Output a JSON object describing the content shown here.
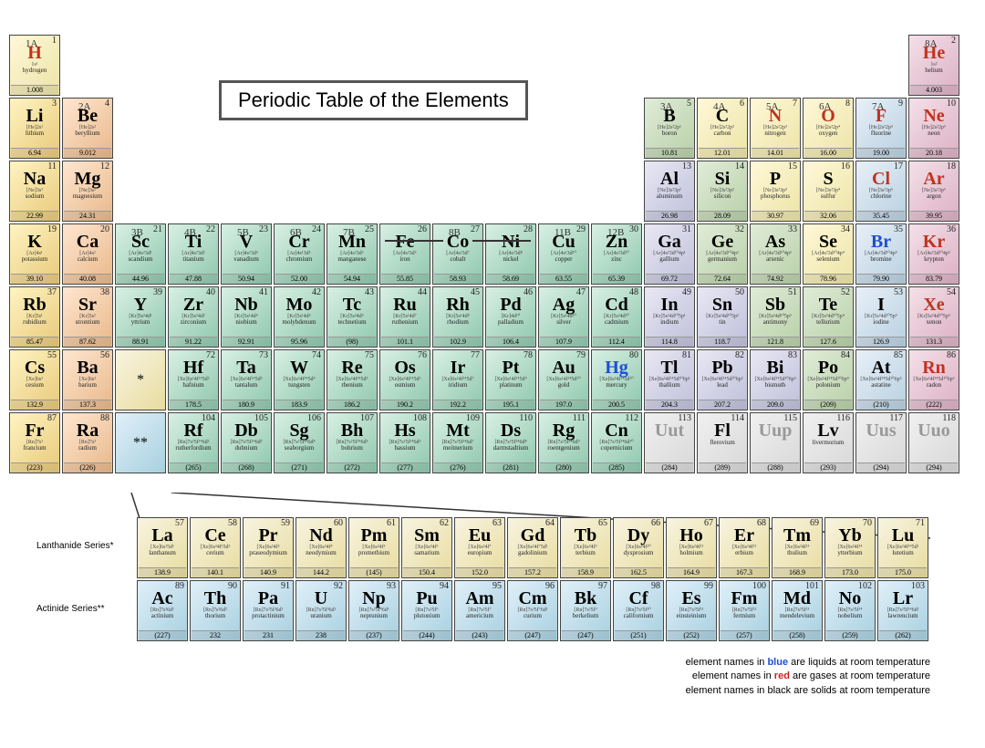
{
  "title": "Periodic Table of the Elements",
  "group_labels": [
    "1A",
    "2A",
    "3B",
    "4B",
    "5B",
    "6B",
    "7B",
    "8B",
    "11B",
    "12B",
    "3A",
    "4A",
    "5A",
    "6A",
    "7A",
    "8A"
  ],
  "legend": {
    "l1a": "element names in ",
    "l1b": "blue",
    "l1c": " are liquids at room temperature",
    "l2a": "element names in ",
    "l2b": "red",
    "l2c": " are gases at room temperature",
    "l3": "element names in black are solids at room temperature"
  },
  "series": {
    "lanth": "Lanthanide Series*",
    "act": "Actinide Series**"
  },
  "colors": {
    "alkali": "linear-gradient(135deg,#fff4c2,#e8c97a)",
    "alkaline": "linear-gradient(135deg,#ffe6d0,#e8b88a)",
    "transition": "linear-gradient(135deg,#d8f0e4,#8fc7ad)",
    "post": "linear-gradient(135deg,#e8e8f4,#bfbfda)",
    "metalloid": "linear-gradient(135deg,#e0ecd8,#b8d0a8)",
    "nonmetal": "linear-gradient(135deg,#fff8d8,#ece4a6)",
    "halogen": "linear-gradient(135deg,#e8f0f8,#b8d0e0)",
    "noble": "linear-gradient(135deg,#f4e0e8,#dcb0c4)",
    "lanth": "linear-gradient(135deg,#f8f4e0,#e8dca0)",
    "act": "linear-gradient(135deg,#e0f0f8,#a8d0e0)",
    "unknown": "linear-gradient(135deg,#f0f0f0,#d8d8d8)",
    "border": "#555"
  },
  "elements": [
    {
      "z": 1,
      "s": "H",
      "n": "hydrogen",
      "m": "1.008",
      "e": "1s¹",
      "r": 1,
      "c": 1,
      "cat": "nonmetal",
      "st": "gas"
    },
    {
      "z": 2,
      "s": "He",
      "n": "helium",
      "m": "4.003",
      "e": "1s²",
      "r": 1,
      "c": 18,
      "cat": "noble",
      "st": "gas"
    },
    {
      "z": 3,
      "s": "Li",
      "n": "lithium",
      "m": "6.94",
      "e": "[He]2s¹",
      "r": 2,
      "c": 1,
      "cat": "alkali"
    },
    {
      "z": 4,
      "s": "Be",
      "n": "beryllium",
      "m": "9.012",
      "e": "[He]2s²",
      "r": 2,
      "c": 2,
      "cat": "alkaline"
    },
    {
      "z": 5,
      "s": "B",
      "n": "boron",
      "m": "10.81",
      "e": "[He]2s²2p¹",
      "r": 2,
      "c": 13,
      "cat": "metalloid"
    },
    {
      "z": 6,
      "s": "C",
      "n": "carbon",
      "m": "12.01",
      "e": "[He]2s²2p²",
      "r": 2,
      "c": 14,
      "cat": "nonmetal"
    },
    {
      "z": 7,
      "s": "N",
      "n": "nitrogen",
      "m": "14.01",
      "e": "[He]2s²2p³",
      "r": 2,
      "c": 15,
      "cat": "nonmetal",
      "st": "gas"
    },
    {
      "z": 8,
      "s": "O",
      "n": "oxygen",
      "m": "16.00",
      "e": "[He]2s²2p⁴",
      "r": 2,
      "c": 16,
      "cat": "nonmetal",
      "st": "gas"
    },
    {
      "z": 9,
      "s": "F",
      "n": "fluorine",
      "m": "19.00",
      "e": "[He]2s²2p⁵",
      "r": 2,
      "c": 17,
      "cat": "halogen",
      "st": "gas"
    },
    {
      "z": 10,
      "s": "Ne",
      "n": "neon",
      "m": "20.18",
      "e": "[He]2s²2p⁶",
      "r": 2,
      "c": 18,
      "cat": "noble",
      "st": "gas"
    },
    {
      "z": 11,
      "s": "Na",
      "n": "sodium",
      "m": "22.99",
      "e": "[Ne]3s¹",
      "r": 3,
      "c": 1,
      "cat": "alkali"
    },
    {
      "z": 12,
      "s": "Mg",
      "n": "magnesium",
      "m": "24.31",
      "e": "[Ne]3s²",
      "r": 3,
      "c": 2,
      "cat": "alkaline"
    },
    {
      "z": 13,
      "s": "Al",
      "n": "aluminum",
      "m": "26.98",
      "e": "[Ne]3s²3p¹",
      "r": 3,
      "c": 13,
      "cat": "post"
    },
    {
      "z": 14,
      "s": "Si",
      "n": "silicon",
      "m": "28.09",
      "e": "[Ne]3s²3p²",
      "r": 3,
      "c": 14,
      "cat": "metalloid"
    },
    {
      "z": 15,
      "s": "P",
      "n": "phosphorus",
      "m": "30.97",
      "e": "[Ne]3s²3p³",
      "r": 3,
      "c": 15,
      "cat": "nonmetal"
    },
    {
      "z": 16,
      "s": "S",
      "n": "sulfur",
      "m": "32.06",
      "e": "[Ne]3s²3p⁴",
      "r": 3,
      "c": 16,
      "cat": "nonmetal"
    },
    {
      "z": 17,
      "s": "Cl",
      "n": "chlorine",
      "m": "35.45",
      "e": "[Ne]3s²3p⁵",
      "r": 3,
      "c": 17,
      "cat": "halogen",
      "st": "gas"
    },
    {
      "z": 18,
      "s": "Ar",
      "n": "argon",
      "m": "39.95",
      "e": "[Ne]3s²3p⁶",
      "r": 3,
      "c": 18,
      "cat": "noble",
      "st": "gas"
    },
    {
      "z": 19,
      "s": "K",
      "n": "potassium",
      "m": "39.10",
      "e": "[Ar]4s¹",
      "r": 4,
      "c": 1,
      "cat": "alkali"
    },
    {
      "z": 20,
      "s": "Ca",
      "n": "calcium",
      "m": "40.08",
      "e": "[Ar]4s²",
      "r": 4,
      "c": 2,
      "cat": "alkaline"
    },
    {
      "z": 21,
      "s": "Sc",
      "n": "scandium",
      "m": "44.96",
      "e": "[Ar]4s²3d¹",
      "r": 4,
      "c": 3,
      "cat": "transition"
    },
    {
      "z": 22,
      "s": "Ti",
      "n": "titanium",
      "m": "47.88",
      "e": "[Ar]4s²3d²",
      "r": 4,
      "c": 4,
      "cat": "transition"
    },
    {
      "z": 23,
      "s": "V",
      "n": "vanadium",
      "m": "50.94",
      "e": "[Ar]4s²3d³",
      "r": 4,
      "c": 5,
      "cat": "transition"
    },
    {
      "z": 24,
      "s": "Cr",
      "n": "chromium",
      "m": "52.00",
      "e": "[Ar]4s¹3d⁵",
      "r": 4,
      "c": 6,
      "cat": "transition"
    },
    {
      "z": 25,
      "s": "Mn",
      "n": "manganese",
      "m": "54.94",
      "e": "[Ar]4s²3d⁵",
      "r": 4,
      "c": 7,
      "cat": "transition"
    },
    {
      "z": 26,
      "s": "Fe",
      "n": "iron",
      "m": "55.85",
      "e": "[Ar]4s²3d⁶",
      "r": 4,
      "c": 8,
      "cat": "transition"
    },
    {
      "z": 27,
      "s": "Co",
      "n": "cobalt",
      "m": "58.93",
      "e": "[Ar]4s²3d⁷",
      "r": 4,
      "c": 9,
      "cat": "transition"
    },
    {
      "z": 28,
      "s": "Ni",
      "n": "nickel",
      "m": "58.69",
      "e": "[Ar]4s²3d⁸",
      "r": 4,
      "c": 10,
      "cat": "transition"
    },
    {
      "z": 29,
      "s": "Cu",
      "n": "copper",
      "m": "63.55",
      "e": "[Ar]4s¹3d¹⁰",
      "r": 4,
      "c": 11,
      "cat": "transition"
    },
    {
      "z": 30,
      "s": "Zn",
      "n": "zinc",
      "m": "65.39",
      "e": "[Ar]4s²3d¹⁰",
      "r": 4,
      "c": 12,
      "cat": "transition"
    },
    {
      "z": 31,
      "s": "Ga",
      "n": "gallium",
      "m": "69.72",
      "e": "[Ar]4s²3d¹⁰4p¹",
      "r": 4,
      "c": 13,
      "cat": "post"
    },
    {
      "z": 32,
      "s": "Ge",
      "n": "germanium",
      "m": "72.64",
      "e": "[Ar]4s²3d¹⁰4p²",
      "r": 4,
      "c": 14,
      "cat": "metalloid"
    },
    {
      "z": 33,
      "s": "As",
      "n": "arsenic",
      "m": "74.92",
      "e": "[Ar]4s²3d¹⁰4p³",
      "r": 4,
      "c": 15,
      "cat": "metalloid"
    },
    {
      "z": 34,
      "s": "Se",
      "n": "selenium",
      "m": "78.96",
      "e": "[Ar]4s²3d¹⁰4p⁴",
      "r": 4,
      "c": 16,
      "cat": "nonmetal"
    },
    {
      "z": 35,
      "s": "Br",
      "n": "bromine",
      "m": "79.90",
      "e": "[Ar]4s²3d¹⁰4p⁵",
      "r": 4,
      "c": 17,
      "cat": "halogen",
      "st": "liquid"
    },
    {
      "z": 36,
      "s": "Kr",
      "n": "krypton",
      "m": "83.79",
      "e": "[Ar]4s²3d¹⁰4p⁶",
      "r": 4,
      "c": 18,
      "cat": "noble",
      "st": "gas"
    },
    {
      "z": 37,
      "s": "Rb",
      "n": "rubidium",
      "m": "85.47",
      "e": "[Kr]5s¹",
      "r": 5,
      "c": 1,
      "cat": "alkali"
    },
    {
      "z": 38,
      "s": "Sr",
      "n": "strontium",
      "m": "87.62",
      "e": "[Kr]5s²",
      "r": 5,
      "c": 2,
      "cat": "alkaline"
    },
    {
      "z": 39,
      "s": "Y",
      "n": "yttrium",
      "m": "88.91",
      "e": "[Kr]5s²4d¹",
      "r": 5,
      "c": 3,
      "cat": "transition"
    },
    {
      "z": 40,
      "s": "Zr",
      "n": "zirconium",
      "m": "91.22",
      "e": "[Kr]5s²4d²",
      "r": 5,
      "c": 4,
      "cat": "transition"
    },
    {
      "z": 41,
      "s": "Nb",
      "n": "niobium",
      "m": "92.91",
      "e": "[Kr]5s¹4d⁴",
      "r": 5,
      "c": 5,
      "cat": "transition"
    },
    {
      "z": 42,
      "s": "Mo",
      "n": "molybdenum",
      "m": "95.96",
      "e": "[Kr]5s¹4d⁵",
      "r": 5,
      "c": 6,
      "cat": "transition"
    },
    {
      "z": 43,
      "s": "Tc",
      "n": "technetium",
      "m": "(98)",
      "e": "[Kr]5s²4d⁵",
      "r": 5,
      "c": 7,
      "cat": "transition"
    },
    {
      "z": 44,
      "s": "Ru",
      "n": "ruthenium",
      "m": "101.1",
      "e": "[Kr]5s¹4d⁷",
      "r": 5,
      "c": 8,
      "cat": "transition"
    },
    {
      "z": 45,
      "s": "Rh",
      "n": "rhodium",
      "m": "102.9",
      "e": "[Kr]5s¹4d⁸",
      "r": 5,
      "c": 9,
      "cat": "transition"
    },
    {
      "z": 46,
      "s": "Pd",
      "n": "palladium",
      "m": "106.4",
      "e": "[Kr]4d¹⁰",
      "r": 5,
      "c": 10,
      "cat": "transition"
    },
    {
      "z": 47,
      "s": "Ag",
      "n": "silver",
      "m": "107.9",
      "e": "[Kr]5s¹4d¹⁰",
      "r": 5,
      "c": 11,
      "cat": "transition"
    },
    {
      "z": 48,
      "s": "Cd",
      "n": "cadmium",
      "m": "112.4",
      "e": "[Kr]5s²4d¹⁰",
      "r": 5,
      "c": 12,
      "cat": "transition"
    },
    {
      "z": 49,
      "s": "In",
      "n": "indium",
      "m": "114.8",
      "e": "[Kr]5s²4d¹⁰5p¹",
      "r": 5,
      "c": 13,
      "cat": "post"
    },
    {
      "z": 50,
      "s": "Sn",
      "n": "tin",
      "m": "118.7",
      "e": "[Kr]5s²4d¹⁰5p²",
      "r": 5,
      "c": 14,
      "cat": "post"
    },
    {
      "z": 51,
      "s": "Sb",
      "n": "antimony",
      "m": "121.8",
      "e": "[Kr]5s²4d¹⁰5p³",
      "r": 5,
      "c": 15,
      "cat": "metalloid"
    },
    {
      "z": 52,
      "s": "Te",
      "n": "tellurium",
      "m": "127.6",
      "e": "[Kr]5s²4d¹⁰5p⁴",
      "r": 5,
      "c": 16,
      "cat": "metalloid"
    },
    {
      "z": 53,
      "s": "I",
      "n": "iodine",
      "m": "126.9",
      "e": "[Kr]5s²4d¹⁰5p⁵",
      "r": 5,
      "c": 17,
      "cat": "halogen"
    },
    {
      "z": 54,
      "s": "Xe",
      "n": "xenon",
      "m": "131.3",
      "e": "[Kr]5s²4d¹⁰5p⁶",
      "r": 5,
      "c": 18,
      "cat": "noble",
      "st": "gas"
    },
    {
      "z": 55,
      "s": "Cs",
      "n": "cesium",
      "m": "132.9",
      "e": "[Xe]6s¹",
      "r": 6,
      "c": 1,
      "cat": "alkali"
    },
    {
      "z": 56,
      "s": "Ba",
      "n": "barium",
      "m": "137.3",
      "e": "[Xe]6s²",
      "r": 6,
      "c": 2,
      "cat": "alkaline"
    },
    {
      "z": 72,
      "s": "Hf",
      "n": "hafnium",
      "m": "178.5",
      "e": "[Xe]6s²4f¹⁴5d²",
      "r": 6,
      "c": 4,
      "cat": "transition"
    },
    {
      "z": 73,
      "s": "Ta",
      "n": "tantalum",
      "m": "180.9",
      "e": "[Xe]6s²4f¹⁴5d³",
      "r": 6,
      "c": 5,
      "cat": "transition"
    },
    {
      "z": 74,
      "s": "W",
      "n": "tungsten",
      "m": "183.9",
      "e": "[Xe]6s²4f¹⁴5d⁴",
      "r": 6,
      "c": 6,
      "cat": "transition"
    },
    {
      "z": 75,
      "s": "Re",
      "n": "rhenium",
      "m": "186.2",
      "e": "[Xe]6s²4f¹⁴5d⁵",
      "r": 6,
      "c": 7,
      "cat": "transition"
    },
    {
      "z": 76,
      "s": "Os",
      "n": "osmium",
      "m": "190.2",
      "e": "[Xe]6s²4f¹⁴5d⁶",
      "r": 6,
      "c": 8,
      "cat": "transition"
    },
    {
      "z": 77,
      "s": "Ir",
      "n": "iridium",
      "m": "192.2",
      "e": "[Xe]6s²4f¹⁴5d⁷",
      "r": 6,
      "c": 9,
      "cat": "transition"
    },
    {
      "z": 78,
      "s": "Pt",
      "n": "platinum",
      "m": "195.1",
      "e": "[Xe]6s¹4f¹⁴5d⁹",
      "r": 6,
      "c": 10,
      "cat": "transition"
    },
    {
      "z": 79,
      "s": "Au",
      "n": "gold",
      "m": "197.0",
      "e": "[Xe]6s¹4f¹⁴5d¹⁰",
      "r": 6,
      "c": 11,
      "cat": "transition"
    },
    {
      "z": 80,
      "s": "Hg",
      "n": "mercury",
      "m": "200.5",
      "e": "[Xe]6s²4f¹⁴5d¹⁰",
      "r": 6,
      "c": 12,
      "cat": "transition",
      "st": "liquid"
    },
    {
      "z": 81,
      "s": "Tl",
      "n": "thallium",
      "m": "204.3",
      "e": "[Xe]6s²4f¹⁴5d¹⁰6p¹",
      "r": 6,
      "c": 13,
      "cat": "post"
    },
    {
      "z": 82,
      "s": "Pb",
      "n": "lead",
      "m": "207.2",
      "e": "[Xe]6s²4f¹⁴5d¹⁰6p²",
      "r": 6,
      "c": 14,
      "cat": "post"
    },
    {
      "z": 83,
      "s": "Bi",
      "n": "bismuth",
      "m": "209.0",
      "e": "[Xe]6s²4f¹⁴5d¹⁰6p³",
      "r": 6,
      "c": 15,
      "cat": "post"
    },
    {
      "z": 84,
      "s": "Po",
      "n": "polonium",
      "m": "(209)",
      "e": "[Xe]6s²4f¹⁴5d¹⁰6p⁴",
      "r": 6,
      "c": 16,
      "cat": "metalloid"
    },
    {
      "z": 85,
      "s": "At",
      "n": "astatine",
      "m": "(210)",
      "e": "[Xe]6s²4f¹⁴5d¹⁰6p⁵",
      "r": 6,
      "c": 17,
      "cat": "halogen"
    },
    {
      "z": 86,
      "s": "Rn",
      "n": "radon",
      "m": "(222)",
      "e": "[Xe]6s²4f¹⁴5d¹⁰6p⁶",
      "r": 6,
      "c": 18,
      "cat": "noble",
      "st": "gas"
    },
    {
      "z": 87,
      "s": "Fr",
      "n": "francium",
      "m": "(223)",
      "e": "[Rn]7s¹",
      "r": 7,
      "c": 1,
      "cat": "alkali"
    },
    {
      "z": 88,
      "s": "Ra",
      "n": "radium",
      "m": "(226)",
      "e": "[Rn]7s²",
      "r": 7,
      "c": 2,
      "cat": "alkaline"
    },
    {
      "z": 104,
      "s": "Rf",
      "n": "rutherfordium",
      "m": "(265)",
      "e": "[Rn]7s²5f¹⁴6d²",
      "r": 7,
      "c": 4,
      "cat": "transition"
    },
    {
      "z": 105,
      "s": "Db",
      "n": "dubnium",
      "m": "(268)",
      "e": "[Rn]7s²5f¹⁴6d³",
      "r": 7,
      "c": 5,
      "cat": "transition"
    },
    {
      "z": 106,
      "s": "Sg",
      "n": "seaborgium",
      "m": "(271)",
      "e": "[Rn]7s²5f¹⁴6d⁴",
      "r": 7,
      "c": 6,
      "cat": "transition"
    },
    {
      "z": 107,
      "s": "Bh",
      "n": "bohrium",
      "m": "(272)",
      "e": "[Rn]7s²5f¹⁴6d⁵",
      "r": 7,
      "c": 7,
      "cat": "transition"
    },
    {
      "z": 108,
      "s": "Hs",
      "n": "hassium",
      "m": "(277)",
      "e": "[Rn]7s²5f¹⁴6d⁶",
      "r": 7,
      "c": 8,
      "cat": "transition"
    },
    {
      "z": 109,
      "s": "Mt",
      "n": "meitnerium",
      "m": "(276)",
      "e": "[Rn]7s²5f¹⁴6d⁷",
      "r": 7,
      "c": 9,
      "cat": "transition"
    },
    {
      "z": 110,
      "s": "Ds",
      "n": "darmstadtium",
      "m": "(281)",
      "e": "[Rn]7s²5f¹⁴6d⁸",
      "r": 7,
      "c": 10,
      "cat": "transition"
    },
    {
      "z": 111,
      "s": "Rg",
      "n": "roentgenium",
      "m": "(280)",
      "e": "[Rn]7s²5f¹⁴6d⁹",
      "r": 7,
      "c": 11,
      "cat": "transition"
    },
    {
      "z": 112,
      "s": "Cn",
      "n": "copernicium",
      "m": "(285)",
      "e": "[Rn]7s²5f¹⁴6d¹⁰",
      "r": 7,
      "c": 12,
      "cat": "transition"
    },
    {
      "z": 113,
      "s": "Uut",
      "n": "",
      "m": "(284)",
      "e": "",
      "r": 7,
      "c": 13,
      "cat": "unknown",
      "st": "synthetic"
    },
    {
      "z": 114,
      "s": "Fl",
      "n": "flerovium",
      "m": "(289)",
      "e": "",
      "r": 7,
      "c": 14,
      "cat": "unknown"
    },
    {
      "z": 115,
      "s": "Uup",
      "n": "",
      "m": "(288)",
      "e": "",
      "r": 7,
      "c": 15,
      "cat": "unknown",
      "st": "synthetic"
    },
    {
      "z": 116,
      "s": "Lv",
      "n": "livermorium",
      "m": "(293)",
      "e": "",
      "r": 7,
      "c": 16,
      "cat": "unknown"
    },
    {
      "z": 117,
      "s": "Uus",
      "n": "",
      "m": "(294)",
      "e": "",
      "r": 7,
      "c": 17,
      "cat": "unknown",
      "st": "synthetic"
    },
    {
      "z": 118,
      "s": "Uuo",
      "n": "",
      "m": "(294)",
      "e": "",
      "r": 7,
      "c": 18,
      "cat": "unknown",
      "st": "synthetic"
    }
  ],
  "lanthanides": [
    {
      "z": 57,
      "s": "La",
      "n": "lanthanum",
      "m": "138.9",
      "e": "[Xe]6s²5d¹"
    },
    {
      "z": 58,
      "s": "Ce",
      "n": "cerium",
      "m": "140.1",
      "e": "[Xe]6s²4f¹5d¹"
    },
    {
      "z": 59,
      "s": "Pr",
      "n": "praseodymium",
      "m": "140.9",
      "e": "[Xe]6s²4f³"
    },
    {
      "z": 60,
      "s": "Nd",
      "n": "neodymium",
      "m": "144.2",
      "e": "[Xe]6s²4f⁴"
    },
    {
      "z": 61,
      "s": "Pm",
      "n": "promethium",
      "m": "(145)",
      "e": "[Xe]6s²4f⁵"
    },
    {
      "z": 62,
      "s": "Sm",
      "n": "samarium",
      "m": "150.4",
      "e": "[Xe]6s²4f⁶"
    },
    {
      "z": 63,
      "s": "Eu",
      "n": "europium",
      "m": "152.0",
      "e": "[Xe]6s²4f⁷"
    },
    {
      "z": 64,
      "s": "Gd",
      "n": "gadolinium",
      "m": "157.2",
      "e": "[Xe]6s²4f⁷5d¹"
    },
    {
      "z": 65,
      "s": "Tb",
      "n": "terbium",
      "m": "158.9",
      "e": "[Xe]6s²4f⁹"
    },
    {
      "z": 66,
      "s": "Dy",
      "n": "dysprosium",
      "m": "162.5",
      "e": "[Xe]6s²4f¹⁰"
    },
    {
      "z": 67,
      "s": "Ho",
      "n": "holmium",
      "m": "164.9",
      "e": "[Xe]6s²4f¹¹"
    },
    {
      "z": 68,
      "s": "Er",
      "n": "erbium",
      "m": "167.3",
      "e": "[Xe]6s²4f¹²"
    },
    {
      "z": 69,
      "s": "Tm",
      "n": "thulium",
      "m": "168.9",
      "e": "[Xe]6s²4f¹³"
    },
    {
      "z": 70,
      "s": "Yb",
      "n": "ytterbium",
      "m": "173.0",
      "e": "[Xe]6s²4f¹⁴"
    },
    {
      "z": 71,
      "s": "Lu",
      "n": "lutetium",
      "m": "175.0",
      "e": "[Xe]6s²4f¹⁴5d¹"
    }
  ],
  "actinides": [
    {
      "z": 89,
      "s": "Ac",
      "n": "actinium",
      "m": "(227)",
      "e": "[Rn]7s²6d¹"
    },
    {
      "z": 90,
      "s": "Th",
      "n": "thorium",
      "m": "232",
      "e": "[Rn]7s²6d²"
    },
    {
      "z": 91,
      "s": "Pa",
      "n": "protactinium",
      "m": "231",
      "e": "[Rn]7s²5f²6d¹"
    },
    {
      "z": 92,
      "s": "U",
      "n": "uranium",
      "m": "238",
      "e": "[Rn]7s²5f³6d¹"
    },
    {
      "z": 93,
      "s": "Np",
      "n": "neptunium",
      "m": "(237)",
      "e": "[Rn]7s²5f⁴6d¹"
    },
    {
      "z": 94,
      "s": "Pu",
      "n": "plutonium",
      "m": "(244)",
      "e": "[Rn]7s²5f⁶"
    },
    {
      "z": 95,
      "s": "Am",
      "n": "americium",
      "m": "(243)",
      "e": "[Rn]7s²5f⁷"
    },
    {
      "z": 96,
      "s": "Cm",
      "n": "curium",
      "m": "(247)",
      "e": "[Rn]7s²5f⁷6d¹"
    },
    {
      "z": 97,
      "s": "Bk",
      "n": "berkelium",
      "m": "(247)",
      "e": "[Rn]7s²5f⁹"
    },
    {
      "z": 98,
      "s": "Cf",
      "n": "californium",
      "m": "(251)",
      "e": "[Rn]7s²5f¹⁰"
    },
    {
      "z": 99,
      "s": "Es",
      "n": "einsteinium",
      "m": "(252)",
      "e": "[Rn]7s²5f¹¹"
    },
    {
      "z": 100,
      "s": "Fm",
      "n": "fermium",
      "m": "(257)",
      "e": "[Rn]7s²5f¹²"
    },
    {
      "z": 101,
      "s": "Md",
      "n": "mendelevium",
      "m": "(258)",
      "e": "[Rn]7s²5f¹³"
    },
    {
      "z": 102,
      "s": "No",
      "n": "nobelium",
      "m": "(259)",
      "e": "[Rn]7s²5f¹⁴"
    },
    {
      "z": 103,
      "s": "Lr",
      "n": "lawrencium",
      "m": "(262)",
      "e": "[Rn]7s²5f¹⁴6d¹"
    }
  ],
  "placeholders": [
    {
      "r": 6,
      "c": 3,
      "text": "*",
      "cat": "lanth"
    },
    {
      "r": 7,
      "c": 3,
      "text": "**",
      "cat": "act"
    }
  ]
}
